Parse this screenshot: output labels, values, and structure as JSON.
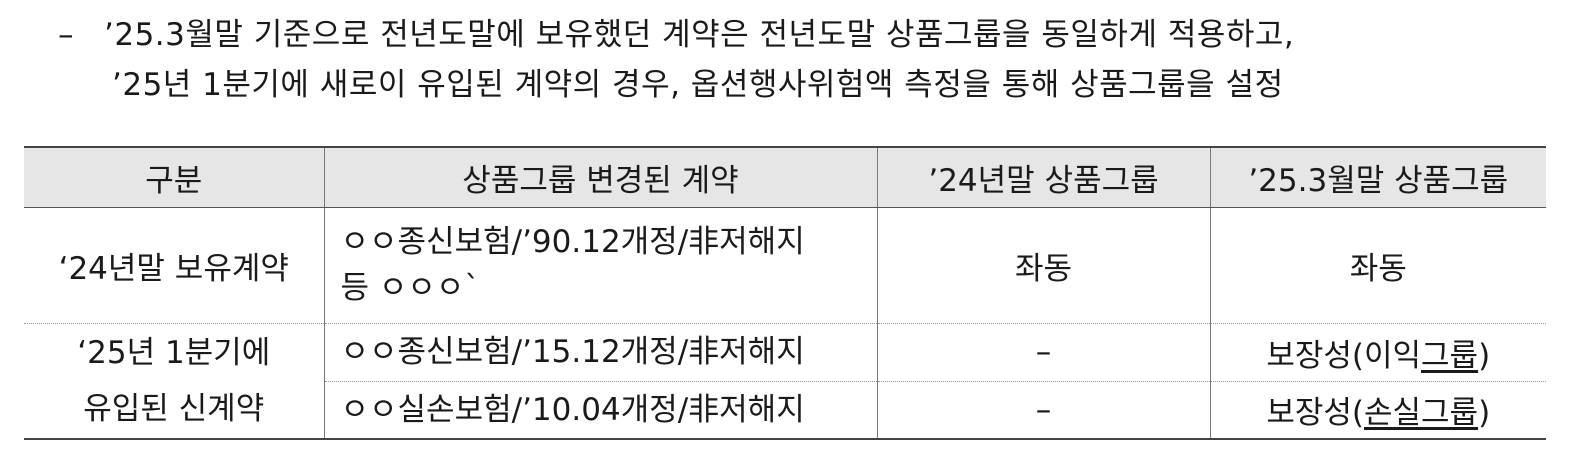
{
  "paragraph": {
    "dash": "–",
    "line1": "’25.3월말 기준으로 전년도말에 보유했던 계약은 전년도말 상품그룹을 동일하게 적용하고,",
    "line2": "’25년 1분기에 새로이 유입된 계약의 경우, 옵션행사위험액 측정을 통해 상품그룹을 설정"
  },
  "table": {
    "headers": [
      "구분",
      "상품그룹 변경된 계약",
      "’24년말 상품그룹",
      "’25.3월말 상품그룹"
    ],
    "group1": {
      "label": "‘24년말 보유계약",
      "contract_line1": "ㅇㅇ종신보험/’90.12개정/非저해지",
      "contract_line2": "등 ㅇㅇㅇ`",
      "group_2024": "좌동",
      "group_2025": "좌동"
    },
    "group2": {
      "label_line1": "‘25년 1분기에",
      "label_line2": "유입된 신계약",
      "row1": {
        "contract": "ㅇㅇ종신보험/’15.12개정/非저해지",
        "group_2024": "–",
        "group_2025_prefix": "보장성(이익",
        "group_2025_underlined": "그룹",
        "group_2025_suffix": ")"
      },
      "row2": {
        "contract": "ㅇㅇ실손보험/’10.04개정/非저해지",
        "group_2024": "–",
        "group_2025_prefix": "보장성(",
        "group_2025_underlined": "손실그룹",
        "group_2025_suffix": ")"
      }
    }
  }
}
